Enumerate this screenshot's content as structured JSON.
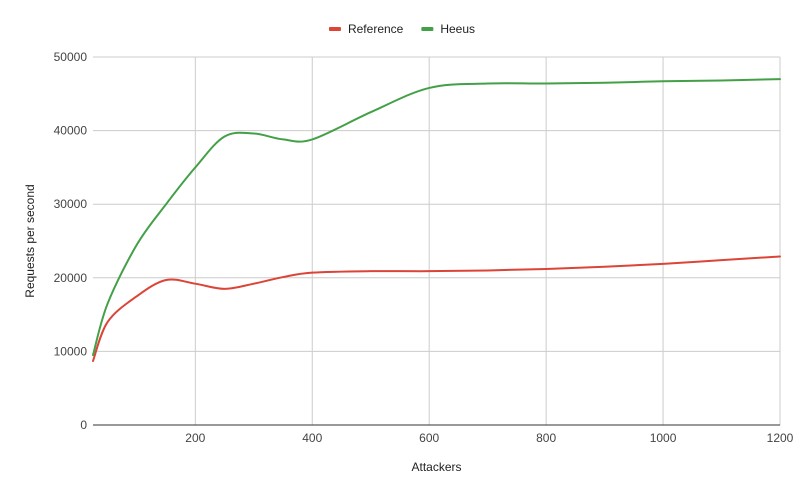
{
  "chart_data": {
    "type": "line",
    "xlabel": "Attackers",
    "ylabel": "Requests per second",
    "xlim": [
      25,
      1200
    ],
    "ylim": [
      0,
      50000
    ],
    "x_ticks": [
      200,
      400,
      600,
      800,
      1000,
      1200
    ],
    "y_ticks": [
      0,
      10000,
      20000,
      30000,
      40000,
      50000
    ],
    "grid": true,
    "legend_position": "top-center",
    "series": [
      {
        "name": "Reference",
        "color": "#db4437",
        "points": [
          [
            25,
            8700
          ],
          [
            50,
            14000
          ],
          [
            100,
            17500
          ],
          [
            150,
            19700
          ],
          [
            200,
            19200
          ],
          [
            250,
            18500
          ],
          [
            300,
            19200
          ],
          [
            350,
            20100
          ],
          [
            400,
            20700
          ],
          [
            500,
            20900
          ],
          [
            600,
            20900
          ],
          [
            700,
            21000
          ],
          [
            800,
            21200
          ],
          [
            900,
            21500
          ],
          [
            1000,
            21900
          ],
          [
            1100,
            22400
          ],
          [
            1200,
            22900
          ]
        ]
      },
      {
        "name": "Heeus",
        "color": "#43a047",
        "points": [
          [
            25,
            9500
          ],
          [
            50,
            16500
          ],
          [
            100,
            24500
          ],
          [
            150,
            30000
          ],
          [
            200,
            35000
          ],
          [
            250,
            39200
          ],
          [
            300,
            39600
          ],
          [
            350,
            38800
          ],
          [
            400,
            38800
          ],
          [
            500,
            42500
          ],
          [
            600,
            45800
          ],
          [
            700,
            46400
          ],
          [
            800,
            46400
          ],
          [
            900,
            46500
          ],
          [
            1000,
            46700
          ],
          [
            1100,
            46800
          ],
          [
            1200,
            47000
          ]
        ]
      }
    ]
  }
}
